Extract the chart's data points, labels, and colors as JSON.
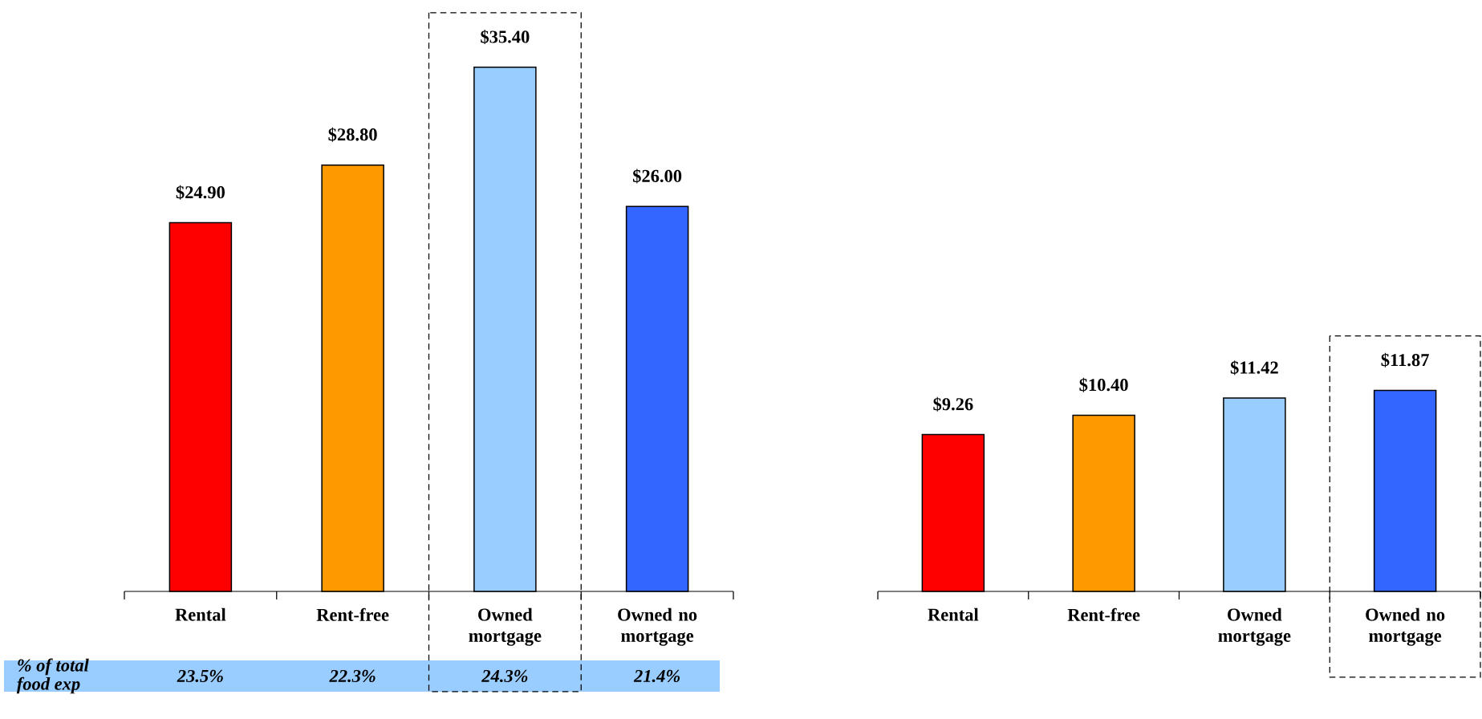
{
  "chart_data": [
    {
      "type": "bar",
      "categories": [
        "Rental",
        "Rent-free",
        "Owned mortgage",
        "Owned no mortgage"
      ],
      "values": [
        24.9,
        28.8,
        35.4,
        26.0
      ],
      "colors": [
        "#ff0000",
        "#ff9900",
        "#99ccff",
        "#3366ff"
      ],
      "value_labels": [
        "$24.90",
        "$28.80",
        "$35.40",
        "$26.00"
      ],
      "annotations": [
        "% of total food exp",
        "23.5%",
        "22.3%",
        "24.3%",
        "21.4%"
      ]
    },
    {
      "type": "bar",
      "categories": [
        "Rental",
        "Rent-free",
        "Owned mortgage",
        "Owned no mortgage"
      ],
      "values": [
        9.26,
        10.4,
        11.42,
        11.87
      ],
      "colors": [
        "#ff0000",
        "#ff9900",
        "#99ccff",
        "#3366ff"
      ],
      "value_labels": [
        "$9.26",
        "$10.40",
        "$11.42",
        "$11.87"
      ]
    }
  ]
}
